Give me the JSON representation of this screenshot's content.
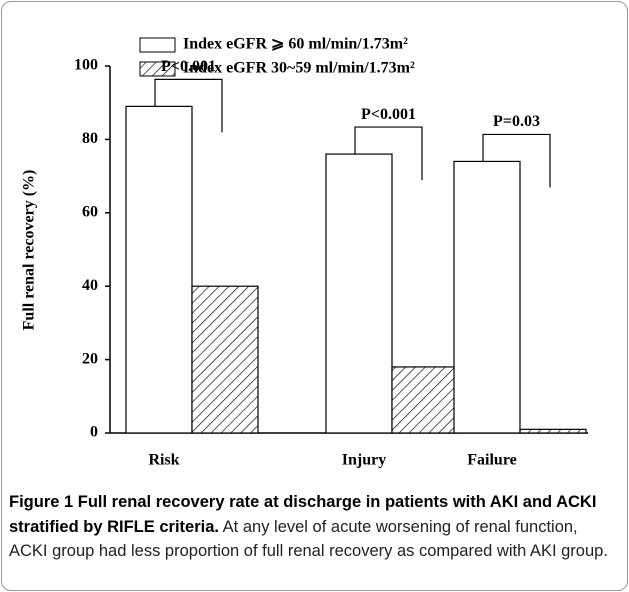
{
  "chart_data": {
    "type": "bar",
    "ylabel": "Full renal recovery (%)",
    "categories": [
      "Risk",
      "Injury",
      "Failure"
    ],
    "series": [
      {
        "name": "Index eGFR ⩾ 60 ml/min/1.73m²",
        "color": "#ffffff",
        "values": [
          89,
          76,
          74
        ]
      },
      {
        "name": "Index eGFR 30~59 ml/min/1.73m²",
        "color": "hatch",
        "values": [
          40,
          18,
          1
        ]
      }
    ],
    "ylim": [
      0,
      100
    ],
    "yticks": [
      0,
      20,
      40,
      60,
      80,
      100
    ],
    "grid": false,
    "annotations": [
      "P<0.001",
      "P<0.001",
      "P=0.03"
    ]
  },
  "caption": {
    "label": "Figure 1 Full renal recovery rate at discharge in patients with AKI and ACKI stratified by RIFLE criteria.",
    "text": "At any level of acute worsening of renal function, ACKI group had less proportion of full renal recovery as compared with AKI group."
  }
}
